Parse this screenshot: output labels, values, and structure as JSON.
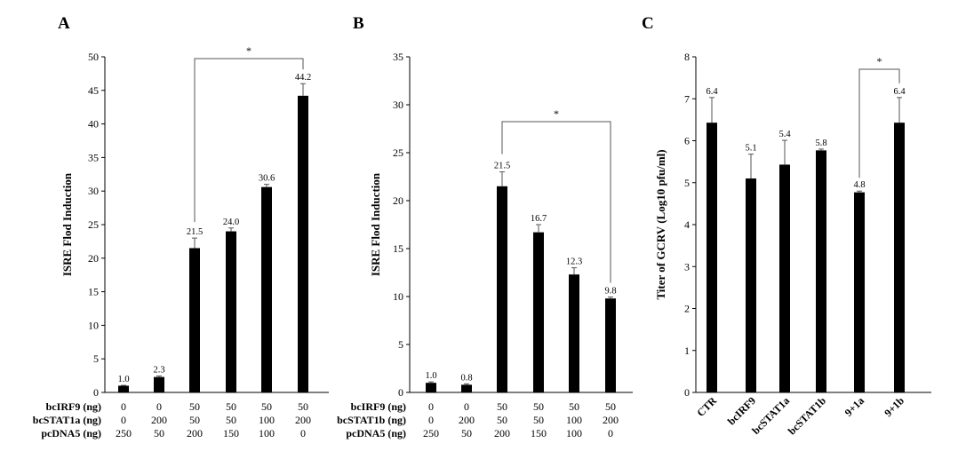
{
  "chart_data": [
    {
      "panel": "A",
      "type": "bar",
      "ylabel": "ISRE Flod Induction",
      "ylim": [
        0,
        50
      ],
      "yticks": [
        0,
        5,
        10,
        15,
        20,
        25,
        30,
        35,
        40,
        45,
        50
      ],
      "values": [
        1.0,
        2.3,
        21.5,
        24.0,
        30.6,
        44.2
      ],
      "errors": [
        0.05,
        0.15,
        1.5,
        0.5,
        0.4,
        1.8
      ],
      "value_labels": [
        "1.0",
        "2.3",
        "21.5",
        "24.0",
        "30.6",
        "44.2"
      ],
      "color": "#000000",
      "conditions": [
        {
          "label": "bcIRF9 (ng)",
          "values": [
            "0",
            "0",
            "50",
            "50",
            "50",
            "50"
          ]
        },
        {
          "label": "bcSTAT1a (ng)",
          "values": [
            "0",
            "200",
            "50",
            "50",
            "100",
            "200"
          ]
        },
        {
          "label": "pcDNA5 (ng)",
          "values": [
            "250",
            "50",
            "200",
            "150",
            "100",
            "0"
          ]
        }
      ],
      "significance": {
        "from": 2,
        "to": 5,
        "label": "*"
      }
    },
    {
      "panel": "B",
      "type": "bar",
      "ylabel": "ISRE Flod Induction",
      "ylim": [
        0,
        35
      ],
      "yticks": [
        0,
        5,
        10,
        15,
        20,
        25,
        30,
        35
      ],
      "values": [
        1.0,
        0.8,
        21.5,
        16.7,
        12.3,
        9.8
      ],
      "errors": [
        0.1,
        0.1,
        1.5,
        0.8,
        0.7,
        0.15
      ],
      "value_labels": [
        "1.0",
        "0.8",
        "21.5",
        "16.7",
        "12.3",
        "9.8"
      ],
      "color": "#000000",
      "conditions": [
        {
          "label": "bcIRF9 (ng)",
          "values": [
            "0",
            "0",
            "50",
            "50",
            "50",
            "50"
          ]
        },
        {
          "label": "bcSTAT1b (ng)",
          "values": [
            "0",
            "200",
            "50",
            "50",
            "100",
            "200"
          ]
        },
        {
          "label": "pcDNA5 (ng)",
          "values": [
            "250",
            "50",
            "200",
            "150",
            "100",
            "0"
          ]
        }
      ],
      "significance": {
        "from": 2,
        "to": 5,
        "label": "*"
      }
    },
    {
      "panel": "C",
      "type": "bar",
      "ylabel": "Titer of GCRV (Log10 pfu/ml)",
      "ylim": [
        0,
        8
      ],
      "yticks": [
        0,
        1,
        2,
        3,
        4,
        5,
        6,
        7,
        8
      ],
      "categories": [
        "CTR",
        "bcIRF9",
        "bcSTAT1a",
        "bcSTAT1b",
        "9+1a",
        "9+1b"
      ],
      "values": [
        6.43,
        5.1,
        5.43,
        5.77,
        4.77,
        6.43
      ],
      "errors": [
        0.6,
        0.58,
        0.58,
        0.03,
        0.03,
        0.6
      ],
      "value_labels": [
        "6.4",
        "5.1",
        "5.4",
        "5.8",
        "4.8",
        "6.4"
      ],
      "color": "#000000",
      "significance": {
        "from": 4,
        "to": 5,
        "label": "*"
      }
    }
  ]
}
